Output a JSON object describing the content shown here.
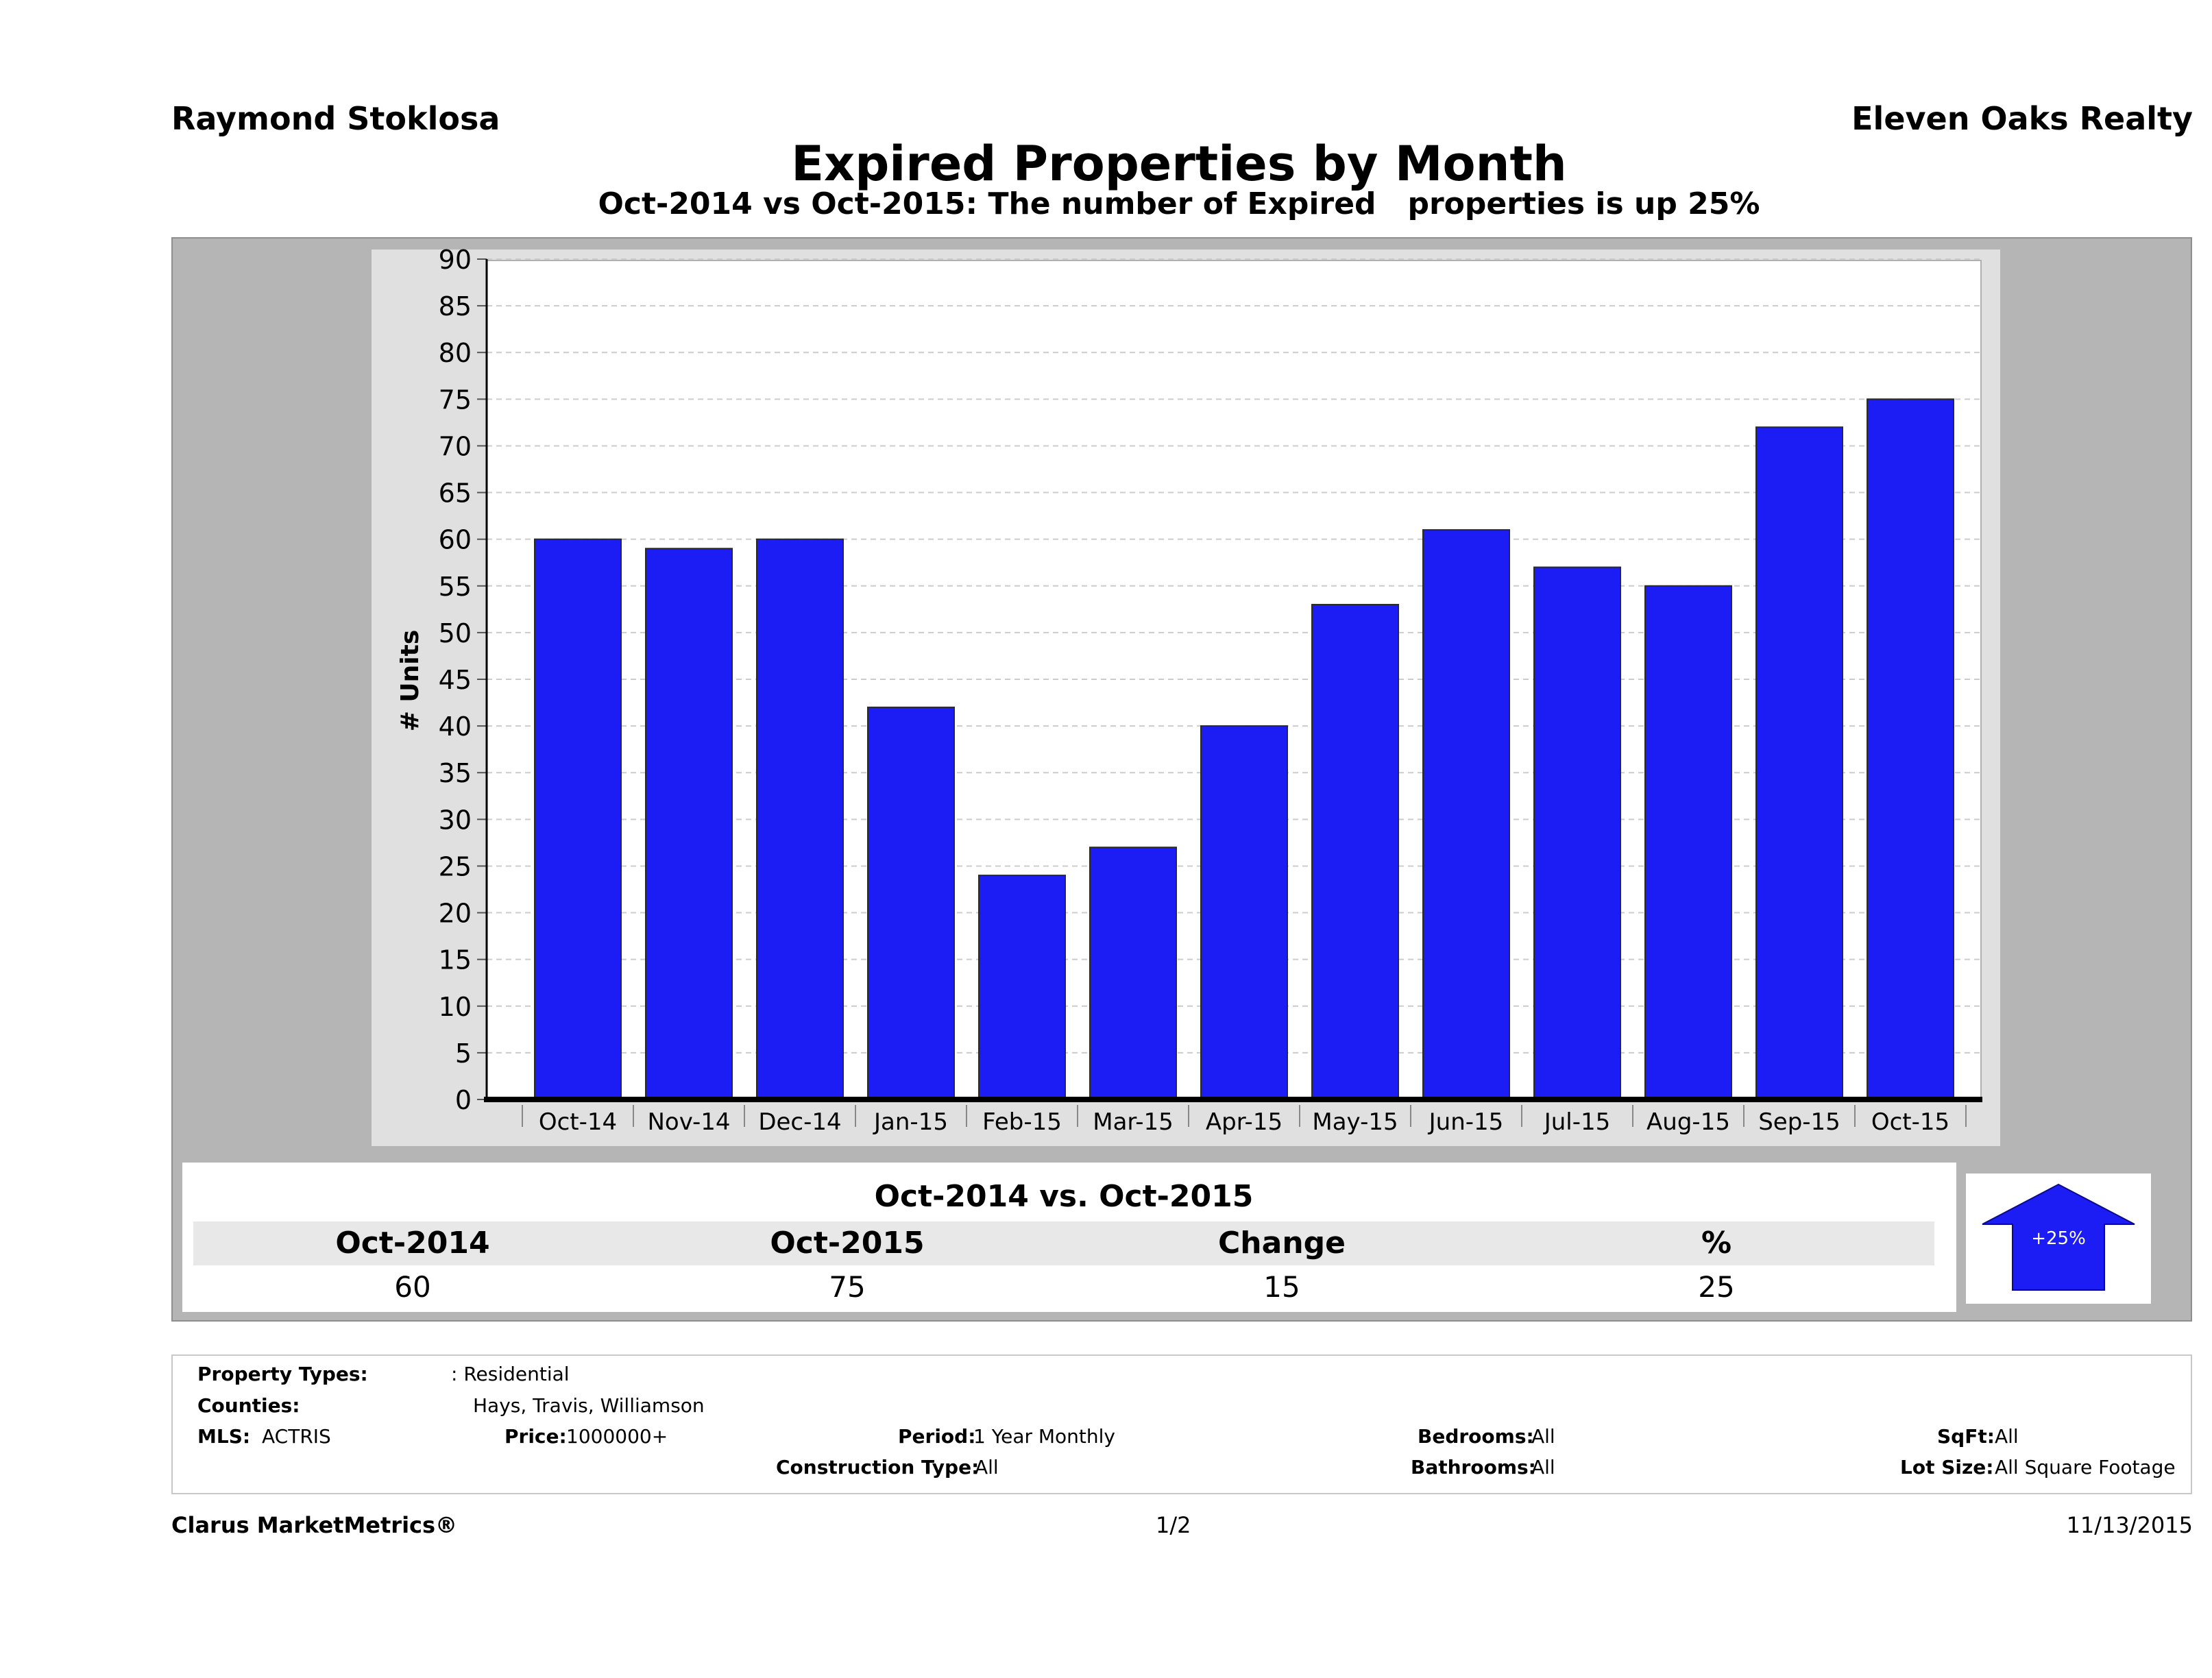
{
  "header": {
    "agent": "Raymond Stoklosa",
    "brokerage": "Eleven Oaks Realty"
  },
  "chart_data": {
    "type": "bar",
    "title": "Expired Properties by Month",
    "subtitle": "Oct-2014 vs Oct-2015: The number of Expired   properties is up 25%",
    "ylabel": "# Units",
    "xlabel": "",
    "ylim": [
      0,
      90
    ],
    "ytick_step": 5,
    "grid": true,
    "categories": [
      "Oct-14",
      "Nov-14",
      "Dec-14",
      "Jan-15",
      "Feb-15",
      "Mar-15",
      "Apr-15",
      "May-15",
      "Jun-15",
      "Jul-15",
      "Aug-15",
      "Sep-15",
      "Oct-15"
    ],
    "values": [
      60,
      59,
      60,
      42,
      24,
      27,
      40,
      53,
      61,
      57,
      55,
      72,
      75
    ],
    "bar_color": "#1c1cf5"
  },
  "summary": {
    "title": "Oct-2014 vs. Oct-2015",
    "headers": [
      "Oct-2014",
      "Oct-2015",
      "Change",
      "%"
    ],
    "values": [
      "60",
      "75",
      "15",
      "25"
    ],
    "badge": "+25%",
    "badge_color": "#1c1cf5",
    "direction": "up"
  },
  "filters": {
    "property_types_label": "Property Types:",
    "property_types_value": ": Residential",
    "counties_label": "Counties:",
    "counties_value": "Hays, Travis, Williamson",
    "mls_label": "MLS:",
    "mls_value": "ACTRIS",
    "price_label": "Price:",
    "price_value": "1000000+",
    "period_label": "Period:",
    "period_value": "1 Year Monthly",
    "construction_label": "Construction Type:",
    "construction_value": "All",
    "bedrooms_label": "Bedrooms:",
    "bedrooms_value": "All",
    "bathrooms_label": "Bathrooms:",
    "bathrooms_value": "All",
    "sqft_label": "SqFt:",
    "sqft_value": "All",
    "lotsize_label": "Lot Size:",
    "lotsize_value": "All Square Footage"
  },
  "footer": {
    "brand": "Clarus MarketMetrics®",
    "page": "1/2",
    "date": "11/13/2015"
  }
}
